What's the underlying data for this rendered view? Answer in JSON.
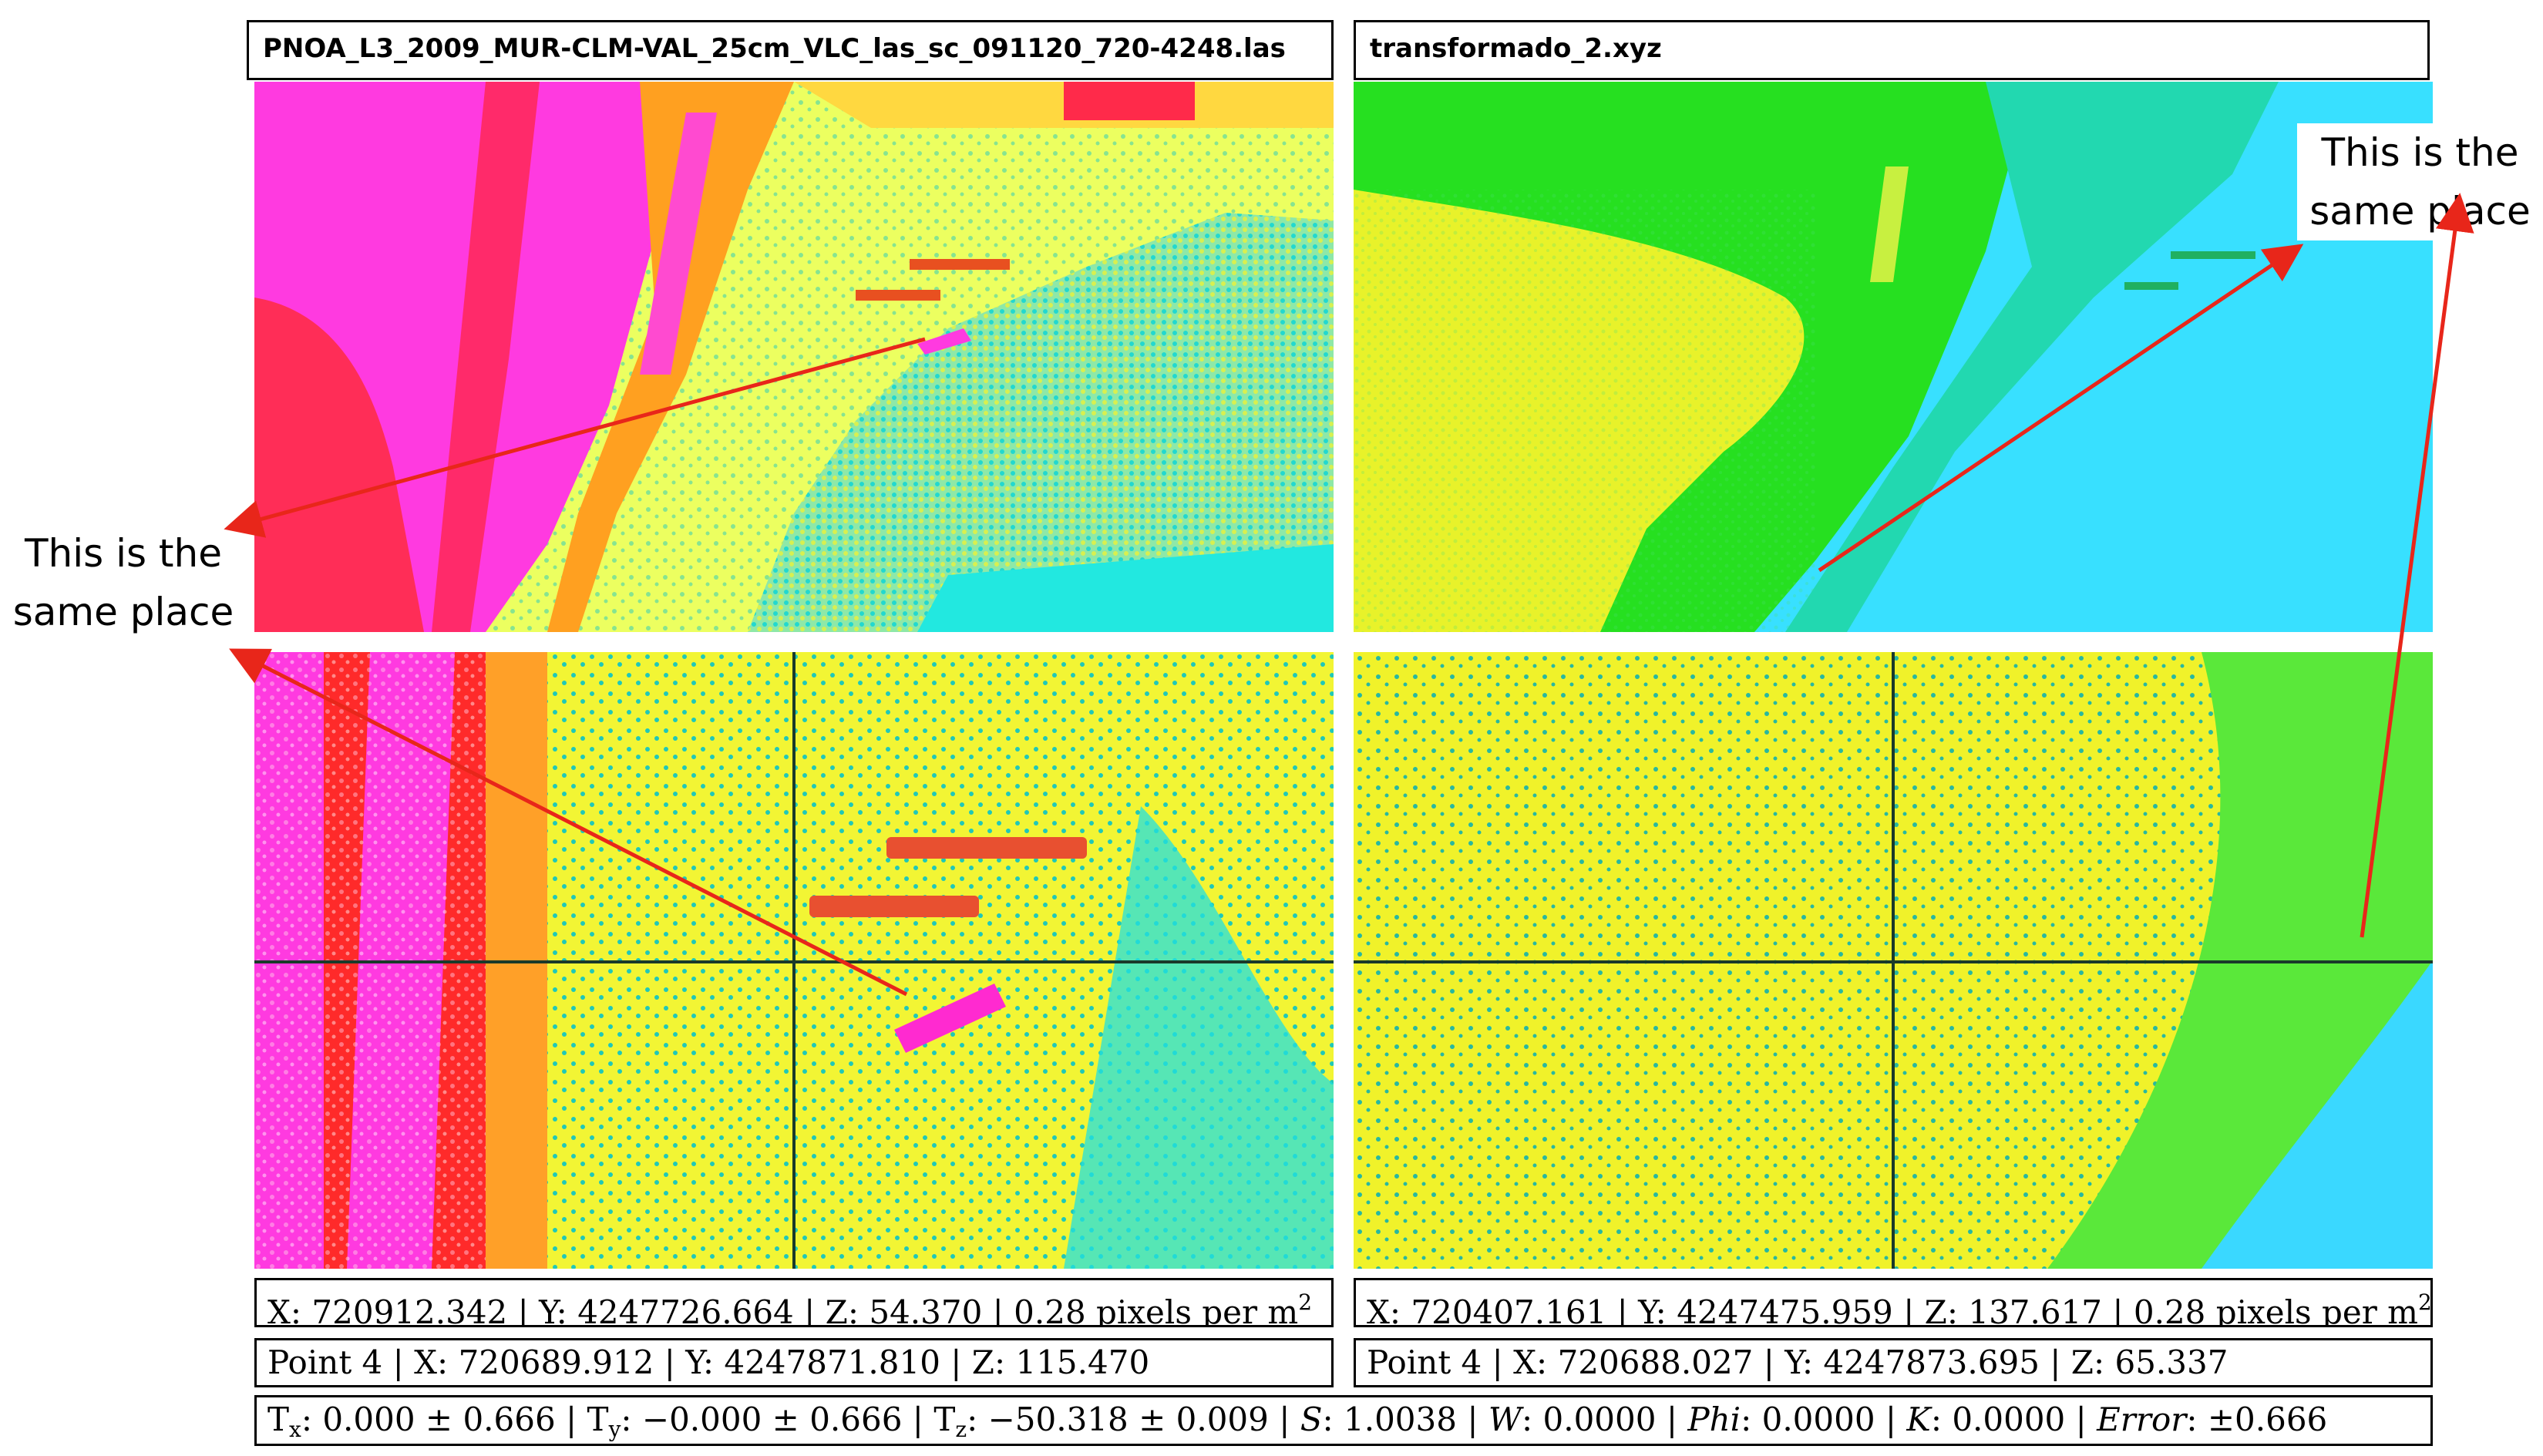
{
  "left_title": "PNOA_L3_2009_MUR-CLM-VAL_25cm_VLC_las_sc_091120_720-4248.las",
  "right_title": "transformado_2.xyz",
  "callout_left": {
    "line1": "This is the",
    "line2": "same place"
  },
  "callout_right": {
    "line1": "This is the",
    "line2": "same place"
  },
  "left_cursor": {
    "x_label": "X:",
    "x": "720912.342",
    "y_label": "Y:",
    "y": "4247726.664",
    "z_label": "Z:",
    "z": "54.370",
    "density": "0.28 pixels per m",
    "density_exp": "2"
  },
  "right_cursor": {
    "x_label": "X:",
    "x": "720407.161",
    "y_label": "Y:",
    "y": "4247475.959",
    "z_label": "Z:",
    "z": "137.617",
    "density": "0.28 pixels per m",
    "density_exp": "2"
  },
  "left_point": {
    "name": "Point 4",
    "x_label": "X:",
    "x": "720689.912",
    "y_label": "Y:",
    "y": "4247871.810",
    "z_label": "Z:",
    "z": "115.470"
  },
  "right_point": {
    "name": "Point 4",
    "x_label": "X:",
    "x": "720688.027",
    "y_label": "Y:",
    "y": "4247873.695",
    "z_label": "Z:",
    "z": "65.337"
  },
  "transform": {
    "tx_label": "T",
    "tx_sub": "x",
    "tx": ": 0.000 ± 0.666",
    "ty_label": "T",
    "ty_sub": "y",
    "ty": ": −0.000 ± 0.666",
    "tz_label": "T",
    "tz_sub": "z",
    "tz": ":  −50.318 ± 0.009",
    "s_label": "S",
    "s": ": 1.0038",
    "w_label": "W",
    "w": ": 0.0000",
    "phi_label": "Phi",
    "phi": ": 0.0000",
    "k_label": "K",
    "k": ": 0.0000",
    "error_label": "Error",
    "error": ":  ±0.666"
  },
  "colors": {
    "magenta": "#ff33dd",
    "red": "#ff2a1a",
    "yellow": "#ffff3a",
    "yellow_green": "#d6f53a",
    "green": "#22e81c",
    "cyan": "#22e8e0",
    "light_blue": "#3ad6ff",
    "arrow": "#e8261a"
  }
}
